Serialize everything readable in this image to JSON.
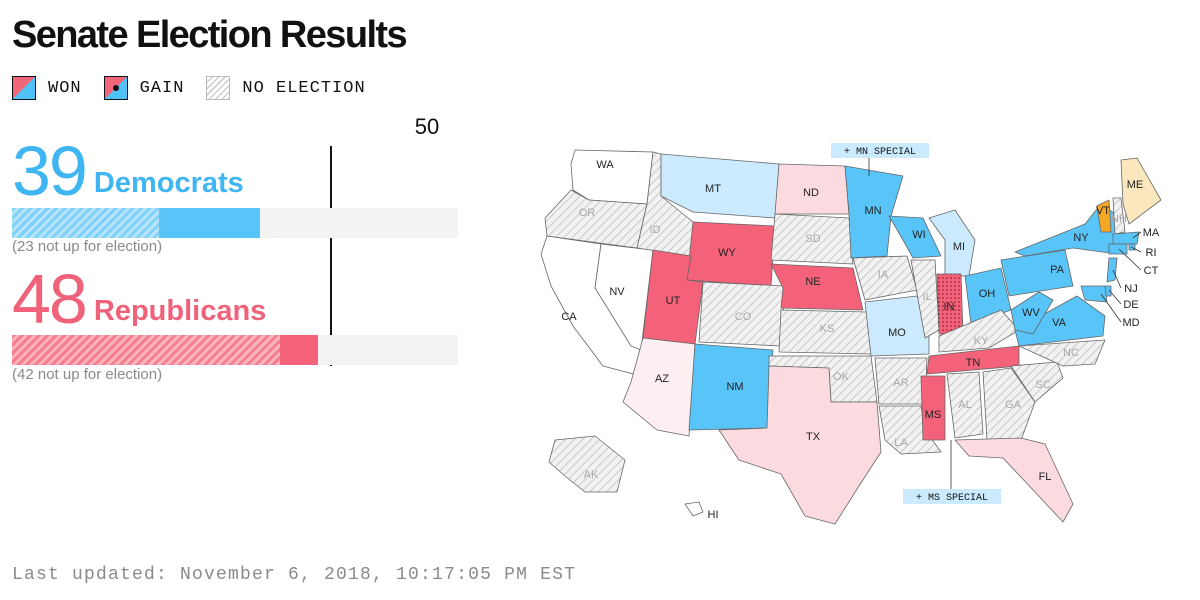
{
  "title": "Senate Election Results",
  "legend": {
    "won": "WON",
    "gain": "GAIN",
    "no_election": "NO ELECTION"
  },
  "majority": {
    "label": "50",
    "value": 50
  },
  "democrats": {
    "seats": "39",
    "name": "Democrats",
    "not_up": 23,
    "note": "(23 not up for election)",
    "color": "#3fb6f2"
  },
  "republicans": {
    "seats": "48",
    "name": "Republicans",
    "not_up": 42,
    "note": "(42 not up for election)",
    "color": "#f0617a"
  },
  "bar_scale_max": 70,
  "callouts": {
    "mn_special": "+ MN SPECIAL",
    "ms_special": "+ MS SPECIAL"
  },
  "colors": {
    "dem_won": "#59c4f8",
    "dem_leaning": "#cbeafd",
    "rep_won": "#f4627a",
    "rep_leaning": "#fbdbe0",
    "rep_lean_light": "#fdeff1",
    "independent": "#f7a823",
    "independent_light": "#fbe7bd",
    "no_election": "#ececec"
  },
  "states": [
    {
      "abbr": "WA",
      "status": "pending"
    },
    {
      "abbr": "OR",
      "status": "no_election"
    },
    {
      "abbr": "CA",
      "status": "pending"
    },
    {
      "abbr": "NV",
      "status": "pending"
    },
    {
      "abbr": "ID",
      "status": "no_election"
    },
    {
      "abbr": "MT",
      "status": "dem_leaning"
    },
    {
      "abbr": "WY",
      "status": "rep_won"
    },
    {
      "abbr": "UT",
      "status": "rep_won"
    },
    {
      "abbr": "AZ",
      "status": "rep_lean_light"
    },
    {
      "abbr": "CO",
      "status": "no_election"
    },
    {
      "abbr": "NM",
      "status": "dem_won"
    },
    {
      "abbr": "ND",
      "status": "rep_leaning"
    },
    {
      "abbr": "SD",
      "status": "no_election"
    },
    {
      "abbr": "NE",
      "status": "rep_won"
    },
    {
      "abbr": "KS",
      "status": "no_election"
    },
    {
      "abbr": "OK",
      "status": "no_election"
    },
    {
      "abbr": "TX",
      "status": "rep_leaning"
    },
    {
      "abbr": "MN",
      "status": "dem_won"
    },
    {
      "abbr": "IA",
      "status": "no_election"
    },
    {
      "abbr": "MO",
      "status": "dem_leaning"
    },
    {
      "abbr": "AR",
      "status": "no_election"
    },
    {
      "abbr": "LA",
      "status": "no_election"
    },
    {
      "abbr": "WI",
      "status": "dem_won"
    },
    {
      "abbr": "IL",
      "status": "no_election"
    },
    {
      "abbr": "MI",
      "status": "dem_leaning"
    },
    {
      "abbr": "IN",
      "status": "rep_gain"
    },
    {
      "abbr": "OH",
      "status": "dem_won"
    },
    {
      "abbr": "KY",
      "status": "no_election"
    },
    {
      "abbr": "TN",
      "status": "rep_won"
    },
    {
      "abbr": "MS",
      "status": "rep_won"
    },
    {
      "abbr": "AL",
      "status": "no_election"
    },
    {
      "abbr": "GA",
      "status": "no_election"
    },
    {
      "abbr": "FL",
      "status": "rep_leaning"
    },
    {
      "abbr": "SC",
      "status": "no_election"
    },
    {
      "abbr": "NC",
      "status": "no_election"
    },
    {
      "abbr": "VA",
      "status": "dem_won"
    },
    {
      "abbr": "WV",
      "status": "dem_won"
    },
    {
      "abbr": "PA",
      "status": "dem_won"
    },
    {
      "abbr": "NY",
      "status": "dem_won"
    },
    {
      "abbr": "VT",
      "status": "independent"
    },
    {
      "abbr": "NH",
      "status": "no_election"
    },
    {
      "abbr": "ME",
      "status": "independent_light"
    },
    {
      "abbr": "MA",
      "status": "dem_won"
    },
    {
      "abbr": "RI",
      "status": "dem_won"
    },
    {
      "abbr": "CT",
      "status": "dem_won"
    },
    {
      "abbr": "NJ",
      "status": "dem_won"
    },
    {
      "abbr": "DE",
      "status": "dem_won"
    },
    {
      "abbr": "MD",
      "status": "dem_won"
    },
    {
      "abbr": "AK",
      "status": "no_election"
    },
    {
      "abbr": "HI",
      "status": "pending"
    }
  ],
  "footer": "Last updated: November 6, 2018, 10:17:05 PM EST"
}
